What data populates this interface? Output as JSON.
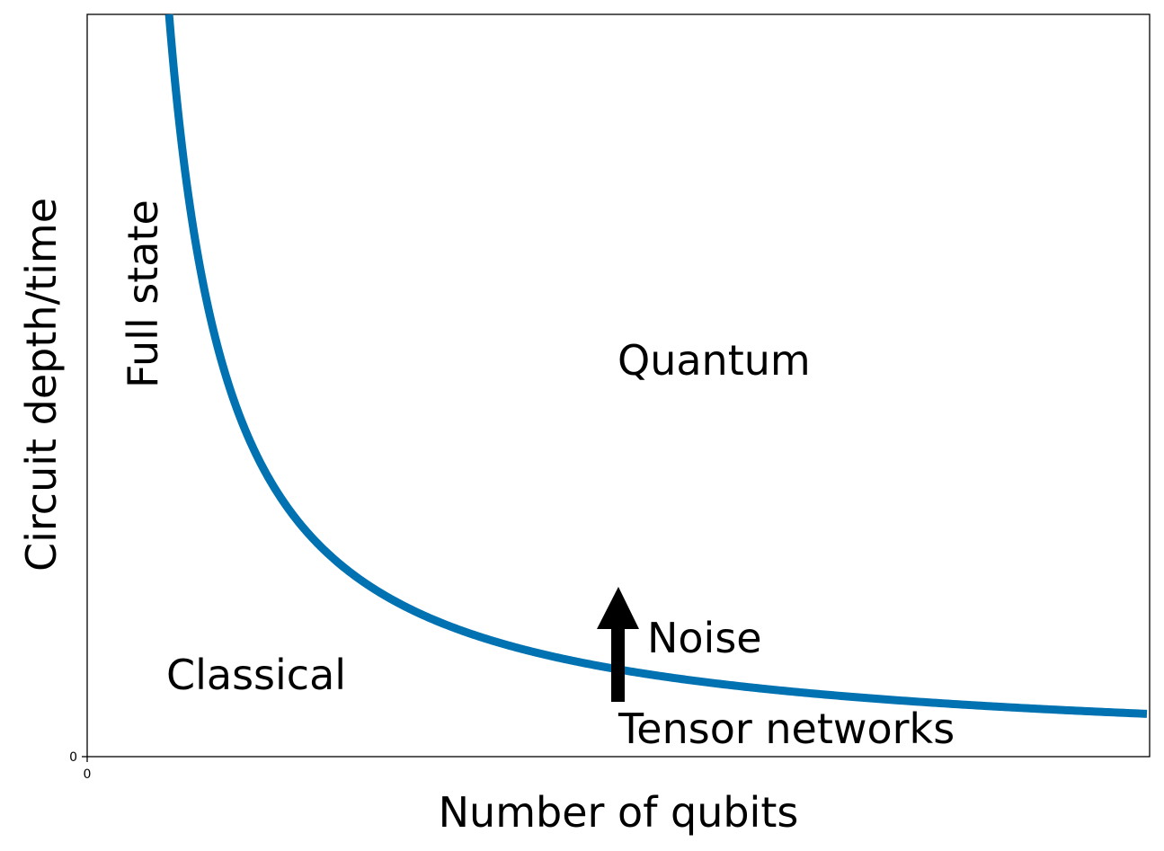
{
  "chart_data": {
    "type": "line",
    "title": "",
    "xlabel": "Number of qubits",
    "ylabel": "Circuit depth/time",
    "x_ticks": [
      "0"
    ],
    "y_ticks": [
      "0"
    ],
    "grid": false,
    "legend": "none",
    "series": [
      {
        "color": "#0072b2",
        "shape": "hyperbolic decay"
      }
    ],
    "annotations": {
      "full_state": "Full state",
      "quantum": "Quantum",
      "noise": "Noise",
      "classical": "Classical",
      "tensor_networks": "Tensor networks"
    },
    "arrow": {
      "label": "Noise",
      "direction": "up",
      "color": "#000000"
    }
  }
}
